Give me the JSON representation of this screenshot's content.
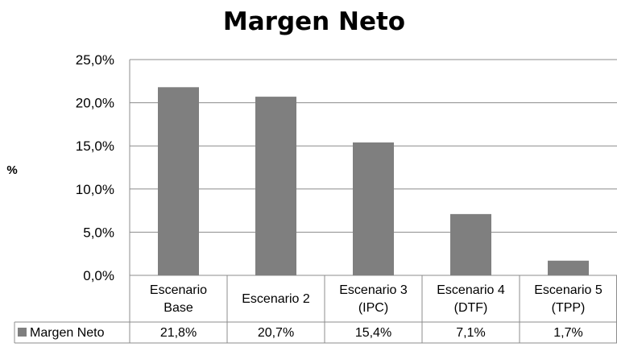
{
  "chart_data": {
    "type": "bar",
    "title": "Margen Neto",
    "ylabel": "%",
    "xlabel": "",
    "categories": [
      [
        "Escenario",
        "Base"
      ],
      [
        "Escenario 2"
      ],
      [
        "Escenario 3",
        "(IPC)"
      ],
      [
        "Escenario 4",
        "(DTF)"
      ],
      [
        "Escenario 5",
        "(TPP)"
      ]
    ],
    "series": [
      {
        "name": "Margen Neto",
        "values": [
          21.8,
          20.7,
          15.4,
          7.1,
          1.7
        ],
        "labels": [
          "21,8%",
          "20,7%",
          "15,4%",
          "7,1%",
          "1,7%"
        ],
        "color": "#7f7f7f"
      }
    ],
    "ylim": [
      0,
      25
    ],
    "yticks": [
      0,
      5,
      10,
      15,
      20,
      25
    ],
    "ytick_labels": [
      "0,0%",
      "5,0%",
      "10,0%",
      "15,0%",
      "20,0%",
      "25,0%"
    ],
    "grid": true,
    "legend": "data-table-bottom"
  }
}
